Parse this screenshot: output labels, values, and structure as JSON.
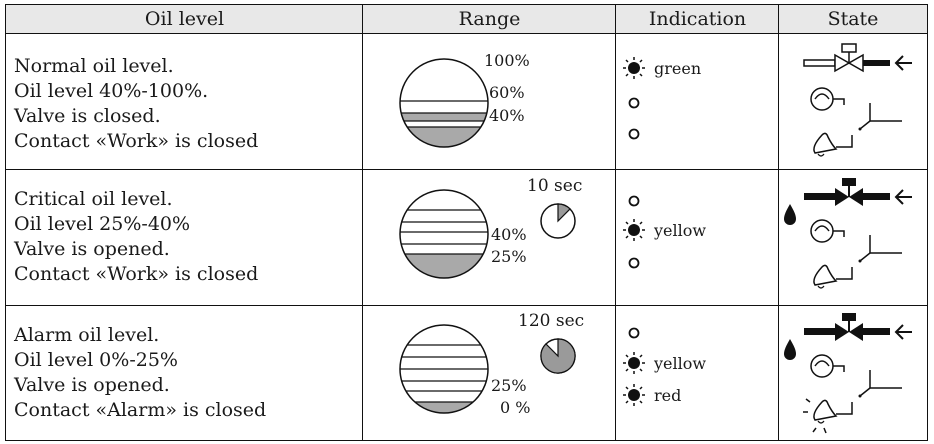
{
  "headers": {
    "oil_level": "Oil level",
    "range": "Range",
    "indication": "Indication",
    "state": "State"
  },
  "rows": [
    {
      "lines": [
        "Normal oil level.",
        "Oil level 40%-100%.",
        "Valve is closed.",
        "Contact «Work» is closed"
      ],
      "range_labels": [
        "100%",
        "60%",
        "40%"
      ],
      "timer": "",
      "timer_fill": 0,
      "indicators": [
        {
          "state": "on",
          "label": "green"
        },
        {
          "state": "off",
          "label": ""
        },
        {
          "state": "off",
          "label": ""
        }
      ],
      "valve": "closed",
      "contact": "work",
      "bell_alarm": false
    },
    {
      "lines": [
        "Critical oil level.",
        "Oil level 25%-40%",
        "Valve is opened.",
        "Contact «Work» is closed"
      ],
      "range_labels": [
        "40%",
        "25%"
      ],
      "timer": "10 sec",
      "timer_fill": 0.125,
      "indicators": [
        {
          "state": "off",
          "label": ""
        },
        {
          "state": "on",
          "label": "yellow"
        },
        {
          "state": "off",
          "label": ""
        }
      ],
      "valve": "opened",
      "contact": "work",
      "bell_alarm": false
    },
    {
      "lines": [
        "Alarm oil level.",
        "Oil level 0%-25%",
        "Valve is opened.",
        "Contact «Alarm» is closed"
      ],
      "range_labels": [
        "25%",
        "0 %"
      ],
      "timer": "120 sec",
      "timer_fill": 0.875,
      "indicators": [
        {
          "state": "off",
          "label": ""
        },
        {
          "state": "on",
          "label": "yellow"
        },
        {
          "state": "on",
          "label": "red"
        }
      ],
      "valve": "opened",
      "contact": "alarm",
      "bell_alarm": true
    }
  ],
  "colors": {
    "border": "#111111",
    "header_bg": "#e8e8e8",
    "oil_fill": "#a9a9a9",
    "timer_fill": "#9a9a9a"
  }
}
